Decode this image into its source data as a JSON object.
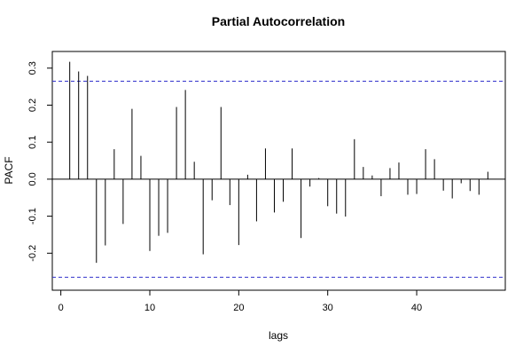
{
  "chart_data": {
    "type": "bar",
    "title": "Partial Autocorrelation",
    "xlabel": "lags",
    "ylabel": "PACF",
    "xlim": [
      -0.96,
      49.96
    ],
    "ylim": [
      -0.3,
      0.345
    ],
    "x_ticks": [
      0,
      10,
      20,
      30,
      40
    ],
    "x_tick_labels": [
      "0",
      "10",
      "20",
      "30",
      "40"
    ],
    "y_ticks": [
      -0.2,
      -0.1,
      0.0,
      0.1,
      0.2,
      0.3
    ],
    "y_tick_labels": [
      "-0.2",
      "-0.1",
      "0.0",
      "0.1",
      "0.2",
      "0.3"
    ],
    "lags": [
      1,
      2,
      3,
      4,
      5,
      6,
      7,
      8,
      9,
      10,
      11,
      12,
      13,
      14,
      15,
      16,
      17,
      18,
      19,
      20,
      21,
      22,
      23,
      24,
      25,
      26,
      27,
      28,
      29,
      30,
      31,
      32,
      33,
      34,
      35,
      36,
      37,
      38,
      39,
      40,
      41,
      42,
      43,
      44,
      45,
      46,
      47,
      48
    ],
    "values": [
      0.317,
      0.291,
      0.279,
      -0.226,
      -0.179,
      0.081,
      -0.121,
      0.19,
      0.063,
      -0.194,
      -0.153,
      -0.145,
      0.195,
      0.241,
      0.047,
      -0.203,
      -0.057,
      0.195,
      -0.07,
      -0.178,
      0.012,
      -0.114,
      0.083,
      -0.09,
      -0.061,
      0.083,
      -0.159,
      -0.02,
      0.003,
      -0.073,
      -0.093,
      -0.101,
      0.108,
      0.033,
      0.01,
      -0.046,
      0.03,
      0.045,
      -0.042,
      -0.04,
      0.081,
      0.054,
      -0.031,
      -0.052,
      -0.011,
      -0.032,
      -0.042,
      0.02
    ],
    "confidence_band": [
      0.2648,
      -0.2648
    ],
    "grid": false,
    "colors": {
      "bars": "#000000",
      "confidence_band": "#3333cc",
      "zero_line": "#000000"
    }
  }
}
